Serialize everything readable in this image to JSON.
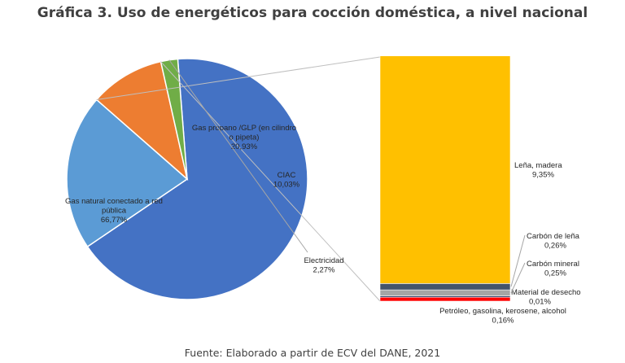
{
  "title": "Gráfica 3. Uso de energéticos para cocción doméstica, a nivel nacional",
  "source": "Fuente: Elaborado a partir de ECV del DANE, 2021",
  "chart_data": [
    {
      "type": "pie",
      "slices": [
        {
          "name": "Gas natural conectado a red pública",
          "value": 66.77,
          "label": "66,77%",
          "color": "#4472c4"
        },
        {
          "name": "Gas propano /GLP (en cilindro o pipeta)",
          "value": 20.93,
          "label": "20,93%",
          "color": "#5b9bd5"
        },
        {
          "name": "CIAC",
          "value": 10.03,
          "label": "10,03%",
          "color": "#ed7d31"
        },
        {
          "name": "Electricidad",
          "value": 2.27,
          "label": "2,27%",
          "color": "#70ad47"
        }
      ]
    },
    {
      "type": "bar",
      "stacked": true,
      "expands": "CIAC",
      "segments": [
        {
          "name": "Petróleo, gasolina, kerosene, alcohol",
          "value": 0.16,
          "label": "0,16%",
          "color": "#ff0000"
        },
        {
          "name": "Material de desecho",
          "value": 0.01,
          "label": "0,01%",
          "color": "#203864"
        },
        {
          "name": "Carbón mineral",
          "value": 0.25,
          "label": "0,25%",
          "color": "#a5a5a5"
        },
        {
          "name": "Carbón de leña",
          "value": 0.26,
          "label": "0,26%",
          "color": "#44546a"
        },
        {
          "name": "Leña, madera",
          "value": 9.35,
          "label": "9,35%",
          "color": "#ffc000"
        }
      ]
    }
  ]
}
